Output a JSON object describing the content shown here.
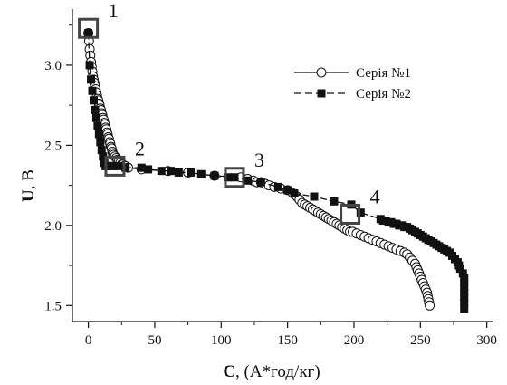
{
  "chart_data": {
    "type": "scatter",
    "xlabel": {
      "bold": "C",
      "rest": ", (А*год/кг)"
    },
    "ylabel": {
      "bold": "U",
      "rest": ", В"
    },
    "xlim": [
      -12,
      305
    ],
    "ylim": [
      1.4,
      3.35
    ],
    "x_ticks": [
      0,
      50,
      100,
      150,
      200,
      250,
      300
    ],
    "y_ticks": [
      1.5,
      2.0,
      2.5,
      3.0
    ],
    "x_tick_labels": [
      "0",
      "50",
      "100",
      "150",
      "200",
      "250",
      "300"
    ],
    "y_tick_labels": [
      "1.5",
      "2.0",
      "2.5",
      "3.0"
    ],
    "grid": false,
    "legend_position": "top-right",
    "series": [
      {
        "name": "Серія №1",
        "marker": "circle-open",
        "color": "#111111",
        "points": [
          [
            0,
            3.2
          ],
          [
            0.5,
            3.15
          ],
          [
            1,
            3.1
          ],
          [
            1.5,
            3.06
          ],
          [
            2,
            3.02
          ],
          [
            2.5,
            2.99
          ],
          [
            3,
            2.96
          ],
          [
            3.5,
            2.93
          ],
          [
            4,
            2.91
          ],
          [
            4.5,
            2.89
          ],
          [
            5,
            2.87
          ],
          [
            5.5,
            2.85
          ],
          [
            6,
            2.83
          ],
          [
            6.5,
            2.81
          ],
          [
            7,
            2.79
          ],
          [
            7.5,
            2.78
          ],
          [
            8,
            2.76
          ],
          [
            8.5,
            2.75
          ],
          [
            9,
            2.73
          ],
          [
            9.5,
            2.72
          ],
          [
            10,
            2.7
          ],
          [
            10.5,
            2.69
          ],
          [
            11,
            2.67
          ],
          [
            11.5,
            2.66
          ],
          [
            12,
            2.64
          ],
          [
            12.5,
            2.63
          ],
          [
            13,
            2.61
          ],
          [
            13.5,
            2.6
          ],
          [
            14,
            2.58
          ],
          [
            14.5,
            2.57
          ],
          [
            15,
            2.55
          ],
          [
            15.5,
            2.54
          ],
          [
            16,
            2.52
          ],
          [
            16.5,
            2.51
          ],
          [
            17,
            2.49
          ],
          [
            17.5,
            2.48
          ],
          [
            18,
            2.46
          ],
          [
            18.5,
            2.45
          ],
          [
            19,
            2.44
          ],
          [
            20,
            2.43
          ],
          [
            21,
            2.42
          ],
          [
            22,
            2.41
          ],
          [
            23,
            2.4
          ],
          [
            24,
            2.39
          ],
          [
            25,
            2.38
          ],
          [
            26,
            2.38
          ],
          [
            27,
            2.37
          ],
          [
            28,
            2.37
          ],
          [
            30,
            2.36
          ],
          [
            40,
            2.35
          ],
          [
            60,
            2.34
          ],
          [
            75,
            2.33
          ],
          [
            95,
            2.31
          ],
          [
            115,
            2.3
          ],
          [
            120,
            2.29
          ],
          [
            124,
            2.28
          ],
          [
            127,
            2.27
          ],
          [
            130,
            2.27
          ],
          [
            133,
            2.26
          ],
          [
            136,
            2.25
          ],
          [
            140,
            2.24
          ],
          [
            145,
            2.23
          ],
          [
            150,
            2.22
          ],
          [
            154,
            2.2
          ],
          [
            157,
            2.18
          ],
          [
            159,
            2.16
          ],
          [
            161,
            2.14
          ],
          [
            163,
            2.13
          ],
          [
            165,
            2.12
          ],
          [
            167,
            2.11
          ],
          [
            169,
            2.1
          ],
          [
            171,
            2.09
          ],
          [
            173,
            2.08
          ],
          [
            175,
            2.07
          ],
          [
            177,
            2.06
          ],
          [
            179,
            2.05
          ],
          [
            181,
            2.04
          ],
          [
            183,
            2.03
          ],
          [
            185,
            2.02
          ],
          [
            187,
            2.01
          ],
          [
            189,
            2.0
          ],
          [
            191,
            1.99
          ],
          [
            193,
            1.98
          ],
          [
            195,
            1.97
          ],
          [
            197,
            1.96
          ],
          [
            199,
            1.96
          ],
          [
            202,
            1.95
          ],
          [
            205,
            1.94
          ],
          [
            208,
            1.93
          ],
          [
            211,
            1.92
          ],
          [
            214,
            1.91
          ],
          [
            217,
            1.9
          ],
          [
            220,
            1.89
          ],
          [
            223,
            1.88
          ],
          [
            226,
            1.87
          ],
          [
            229,
            1.86
          ],
          [
            232,
            1.85
          ],
          [
            235,
            1.84
          ],
          [
            238,
            1.83
          ],
          [
            240,
            1.82
          ],
          [
            242,
            1.8
          ],
          [
            244,
            1.78
          ],
          [
            246,
            1.76
          ],
          [
            247,
            1.74
          ],
          [
            248,
            1.72
          ],
          [
            249,
            1.7
          ],
          [
            250,
            1.68
          ],
          [
            251,
            1.66
          ],
          [
            252,
            1.64
          ],
          [
            253,
            1.62
          ],
          [
            254,
            1.6
          ],
          [
            255,
            1.58
          ],
          [
            255.5,
            1.56
          ],
          [
            256,
            1.54
          ],
          [
            256.5,
            1.52
          ],
          [
            257,
            1.5
          ]
        ]
      },
      {
        "name": "Серія №2",
        "marker": "square-filled",
        "color": "#111111",
        "points": [
          [
            0,
            3.2
          ],
          [
            1,
            3.0
          ],
          [
            2,
            2.91
          ],
          [
            3,
            2.84
          ],
          [
            4,
            2.78
          ],
          [
            5,
            2.72
          ],
          [
            6,
            2.67
          ],
          [
            7,
            2.62
          ],
          [
            8,
            2.57
          ],
          [
            9,
            2.52
          ],
          [
            10,
            2.47
          ],
          [
            11,
            2.43
          ],
          [
            12,
            2.39
          ],
          [
            13,
            2.37
          ],
          [
            15,
            2.37
          ],
          [
            18,
            2.37
          ],
          [
            22,
            2.37
          ],
          [
            28,
            2.36
          ],
          [
            40,
            2.36
          ],
          [
            45,
            2.35
          ],
          [
            55,
            2.34
          ],
          [
            62,
            2.34
          ],
          [
            68,
            2.33
          ],
          [
            77,
            2.33
          ],
          [
            85,
            2.32
          ],
          [
            95,
            2.31
          ],
          [
            105,
            2.3
          ],
          [
            110,
            2.3
          ],
          [
            120,
            2.28
          ],
          [
            130,
            2.27
          ],
          [
            143,
            2.24
          ],
          [
            150,
            2.22
          ],
          [
            155,
            2.2
          ],
          [
            170,
            2.18
          ],
          [
            185,
            2.15
          ],
          [
            198,
            2.13
          ],
          [
            205,
            2.08
          ],
          [
            220,
            2.04
          ],
          [
            222,
            2.03
          ],
          [
            224,
            2.03
          ],
          [
            226,
            2.02
          ],
          [
            228,
            2.02
          ],
          [
            230,
            2.01
          ],
          [
            232,
            2.01
          ],
          [
            234,
            2.0
          ],
          [
            236,
            2.0
          ],
          [
            238,
            1.99
          ],
          [
            240,
            1.99
          ],
          [
            242,
            1.98
          ],
          [
            244,
            1.97
          ],
          [
            246,
            1.96
          ],
          [
            248,
            1.95
          ],
          [
            250,
            1.94
          ],
          [
            252,
            1.93
          ],
          [
            254,
            1.92
          ],
          [
            256,
            1.91
          ],
          [
            258,
            1.9
          ],
          [
            260,
            1.89
          ],
          [
            262,
            1.88
          ],
          [
            264,
            1.87
          ],
          [
            266,
            1.86
          ],
          [
            268,
            1.85
          ],
          [
            270,
            1.84
          ],
          [
            272,
            1.83
          ],
          [
            274,
            1.81
          ],
          [
            276,
            1.79
          ],
          [
            278,
            1.77
          ],
          [
            279,
            1.75
          ],
          [
            280,
            1.73
          ],
          [
            282,
            1.7
          ],
          [
            283,
            1.67
          ],
          [
            283,
            1.64
          ],
          [
            283,
            1.61
          ],
          [
            283,
            1.58
          ],
          [
            283,
            1.55
          ],
          [
            283,
            1.52
          ],
          [
            283,
            1.48
          ]
        ]
      }
    ],
    "marked_points": [
      {
        "label": "1",
        "x": 0,
        "y": 3.23
      },
      {
        "label": "2",
        "x": 20,
        "y": 2.37
      },
      {
        "label": "3",
        "x": 110,
        "y": 2.3
      },
      {
        "label": "4",
        "x": 197,
        "y": 2.07
      }
    ]
  }
}
